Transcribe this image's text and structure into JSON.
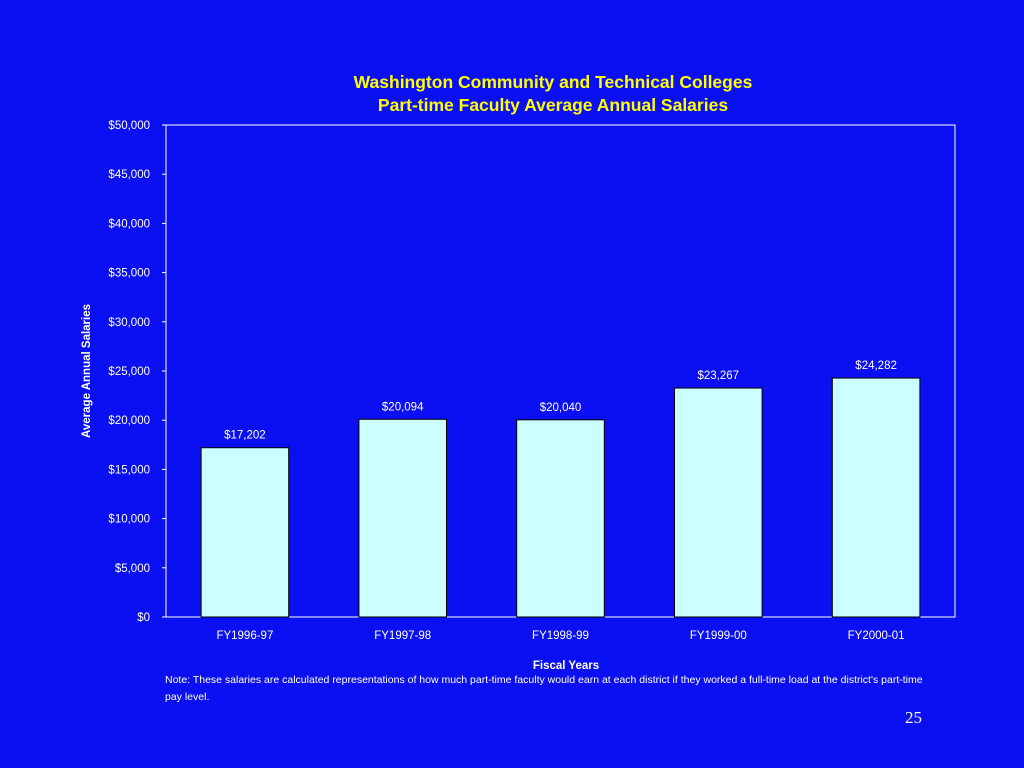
{
  "chart_data": {
    "type": "bar",
    "title": "Washington Community and Technical Colleges",
    "subtitle": "Part-time Faculty Average Annual Salaries",
    "xlabel": "Fiscal Years",
    "ylabel": "Average Annual Salaries",
    "categories": [
      "FY1996-97",
      "FY1997-98",
      "FY1998-99",
      "FY1999-00",
      "FY2000-01"
    ],
    "values": [
      17202,
      20094,
      20040,
      23267,
      24282
    ],
    "value_labels": [
      "$17,202",
      "$20,094",
      "$20,040",
      "$23,267",
      "$24,282"
    ],
    "ylim": [
      0,
      50000
    ],
    "yticks": [
      0,
      5000,
      10000,
      15000,
      20000,
      25000,
      30000,
      35000,
      40000,
      45000,
      50000
    ],
    "ytick_labels": [
      "$0",
      "$5,000",
      "$10,000",
      "$15,000",
      "$20,000",
      "$25,000",
      "$30,000",
      "$35,000",
      "$40,000",
      "$45,000",
      "$50,000"
    ],
    "grid": false,
    "legend": "none"
  },
  "colors": {
    "background": "#0a10f2",
    "title": "#ffff00",
    "bar_fill": "#ccffff",
    "bar_stroke": "#000000",
    "plot_border": "#ffffff",
    "text": "#ffffff"
  },
  "note": "Note: These salaries are calculated representations of how much part-time faculty would earn at each district if they worked a full-time load at the district's part-time pay level.",
  "page_number": "25"
}
